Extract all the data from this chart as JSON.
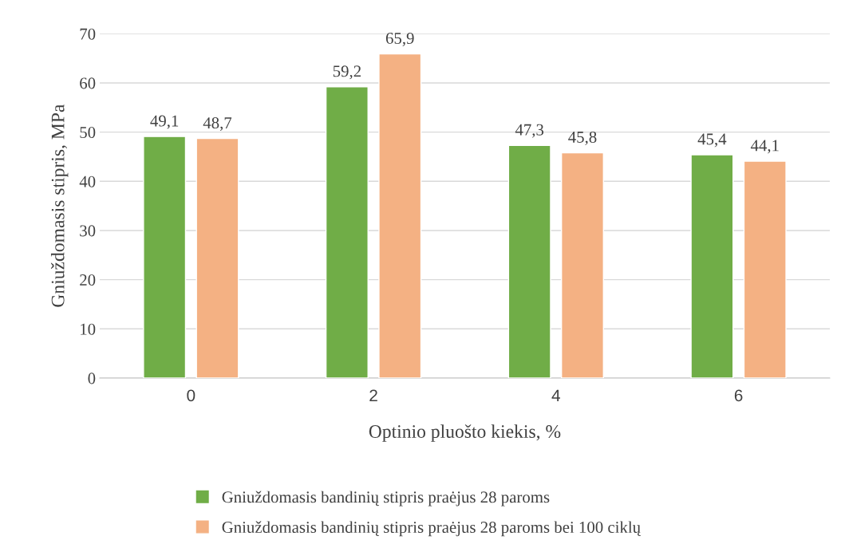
{
  "chart_data": {
    "type": "bar",
    "xlabel": "Optinio pluošto kiekis, %",
    "ylabel": "Gniuždomasis stipris, MPa",
    "categories": [
      "0",
      "2",
      "4",
      "6"
    ],
    "series": [
      {
        "name": "Gniuždomasis bandinių stipris praėjus 28 paroms",
        "color": "#70ad47",
        "values": [
          49.1,
          59.2,
          47.3,
          45.4
        ],
        "value_labels": [
          "49,1",
          "59,2",
          "47,3",
          "45,4"
        ]
      },
      {
        "name": "Gniuždomasis bandinių stipris praėjus 28 paroms bei 100 ciklų",
        "color": "#f4b183",
        "values": [
          48.7,
          65.9,
          45.8,
          44.1
        ],
        "value_labels": [
          "48,7",
          "65,9",
          "45,8",
          "44,1"
        ]
      }
    ],
    "ylim": [
      0,
      70
    ],
    "yticks": [
      0,
      10,
      20,
      30,
      40,
      50,
      60,
      70
    ],
    "grid": "y",
    "legend": "bottom"
  }
}
